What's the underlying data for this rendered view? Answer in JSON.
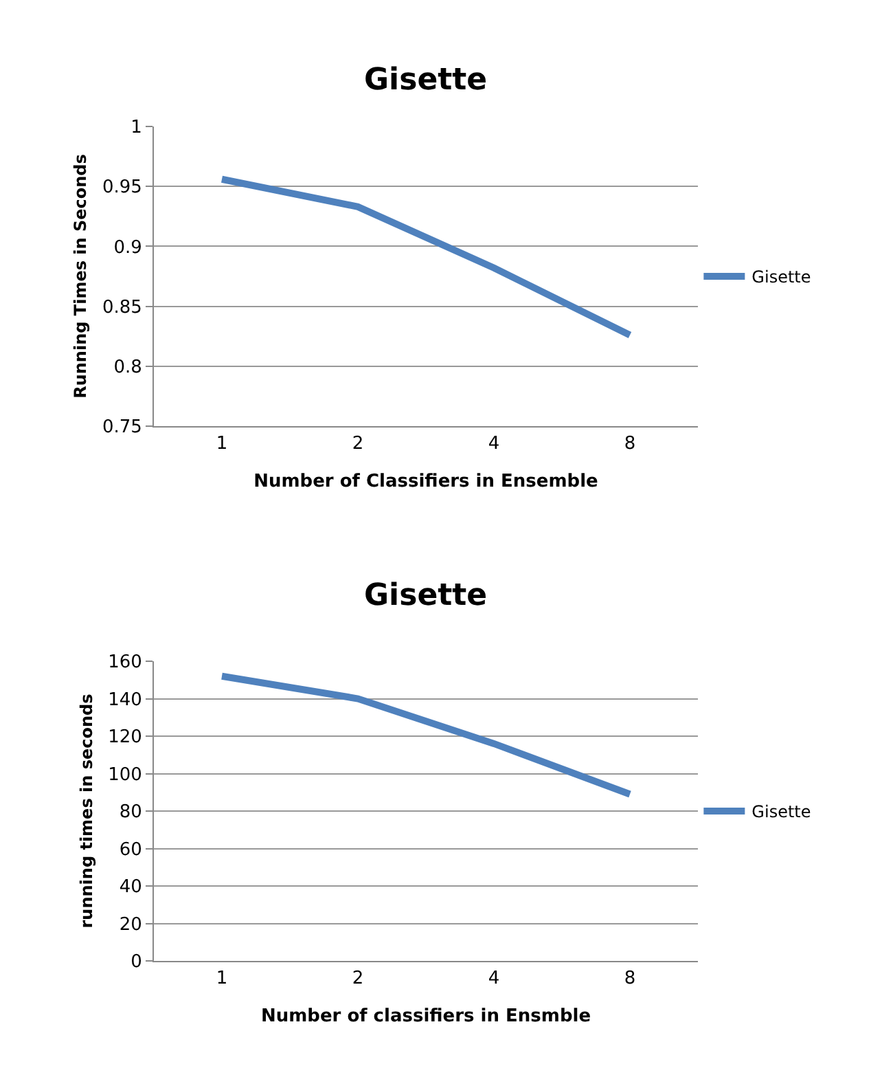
{
  "chart_data": [
    {
      "type": "line",
      "title": "Gisette",
      "xlabel": "Number of Classifiers in Ensemble",
      "ylabel": "Running Times in Seconds",
      "categories": [
        "1",
        "2",
        "4",
        "8"
      ],
      "series": [
        {
          "name": "Gisette",
          "color": "#4f81bd",
          "values": [
            0.956,
            0.933,
            0.882,
            0.826
          ]
        }
      ],
      "ylim": [
        0.75,
        1
      ],
      "yticks": [
        0.75,
        0.8,
        0.85,
        0.9,
        0.95,
        1
      ],
      "grid": "y",
      "legend": "right",
      "marker": "none",
      "line_style": "solid"
    },
    {
      "type": "line",
      "title": "Gisette",
      "xlabel": "Number of classifiers in Ensmble",
      "ylabel": "running times in seconds",
      "categories": [
        "1",
        "2",
        "4",
        "8"
      ],
      "series": [
        {
          "name": "Gisette",
          "color": "#4f81bd",
          "values": [
            152,
            140,
            116,
            89
          ]
        }
      ],
      "ylim": [
        0,
        160
      ],
      "yticks": [
        0,
        20,
        40,
        60,
        80,
        100,
        120,
        140,
        160
      ],
      "grid": "y",
      "legend": "right",
      "marker": "none",
      "line_style": "solid"
    }
  ]
}
